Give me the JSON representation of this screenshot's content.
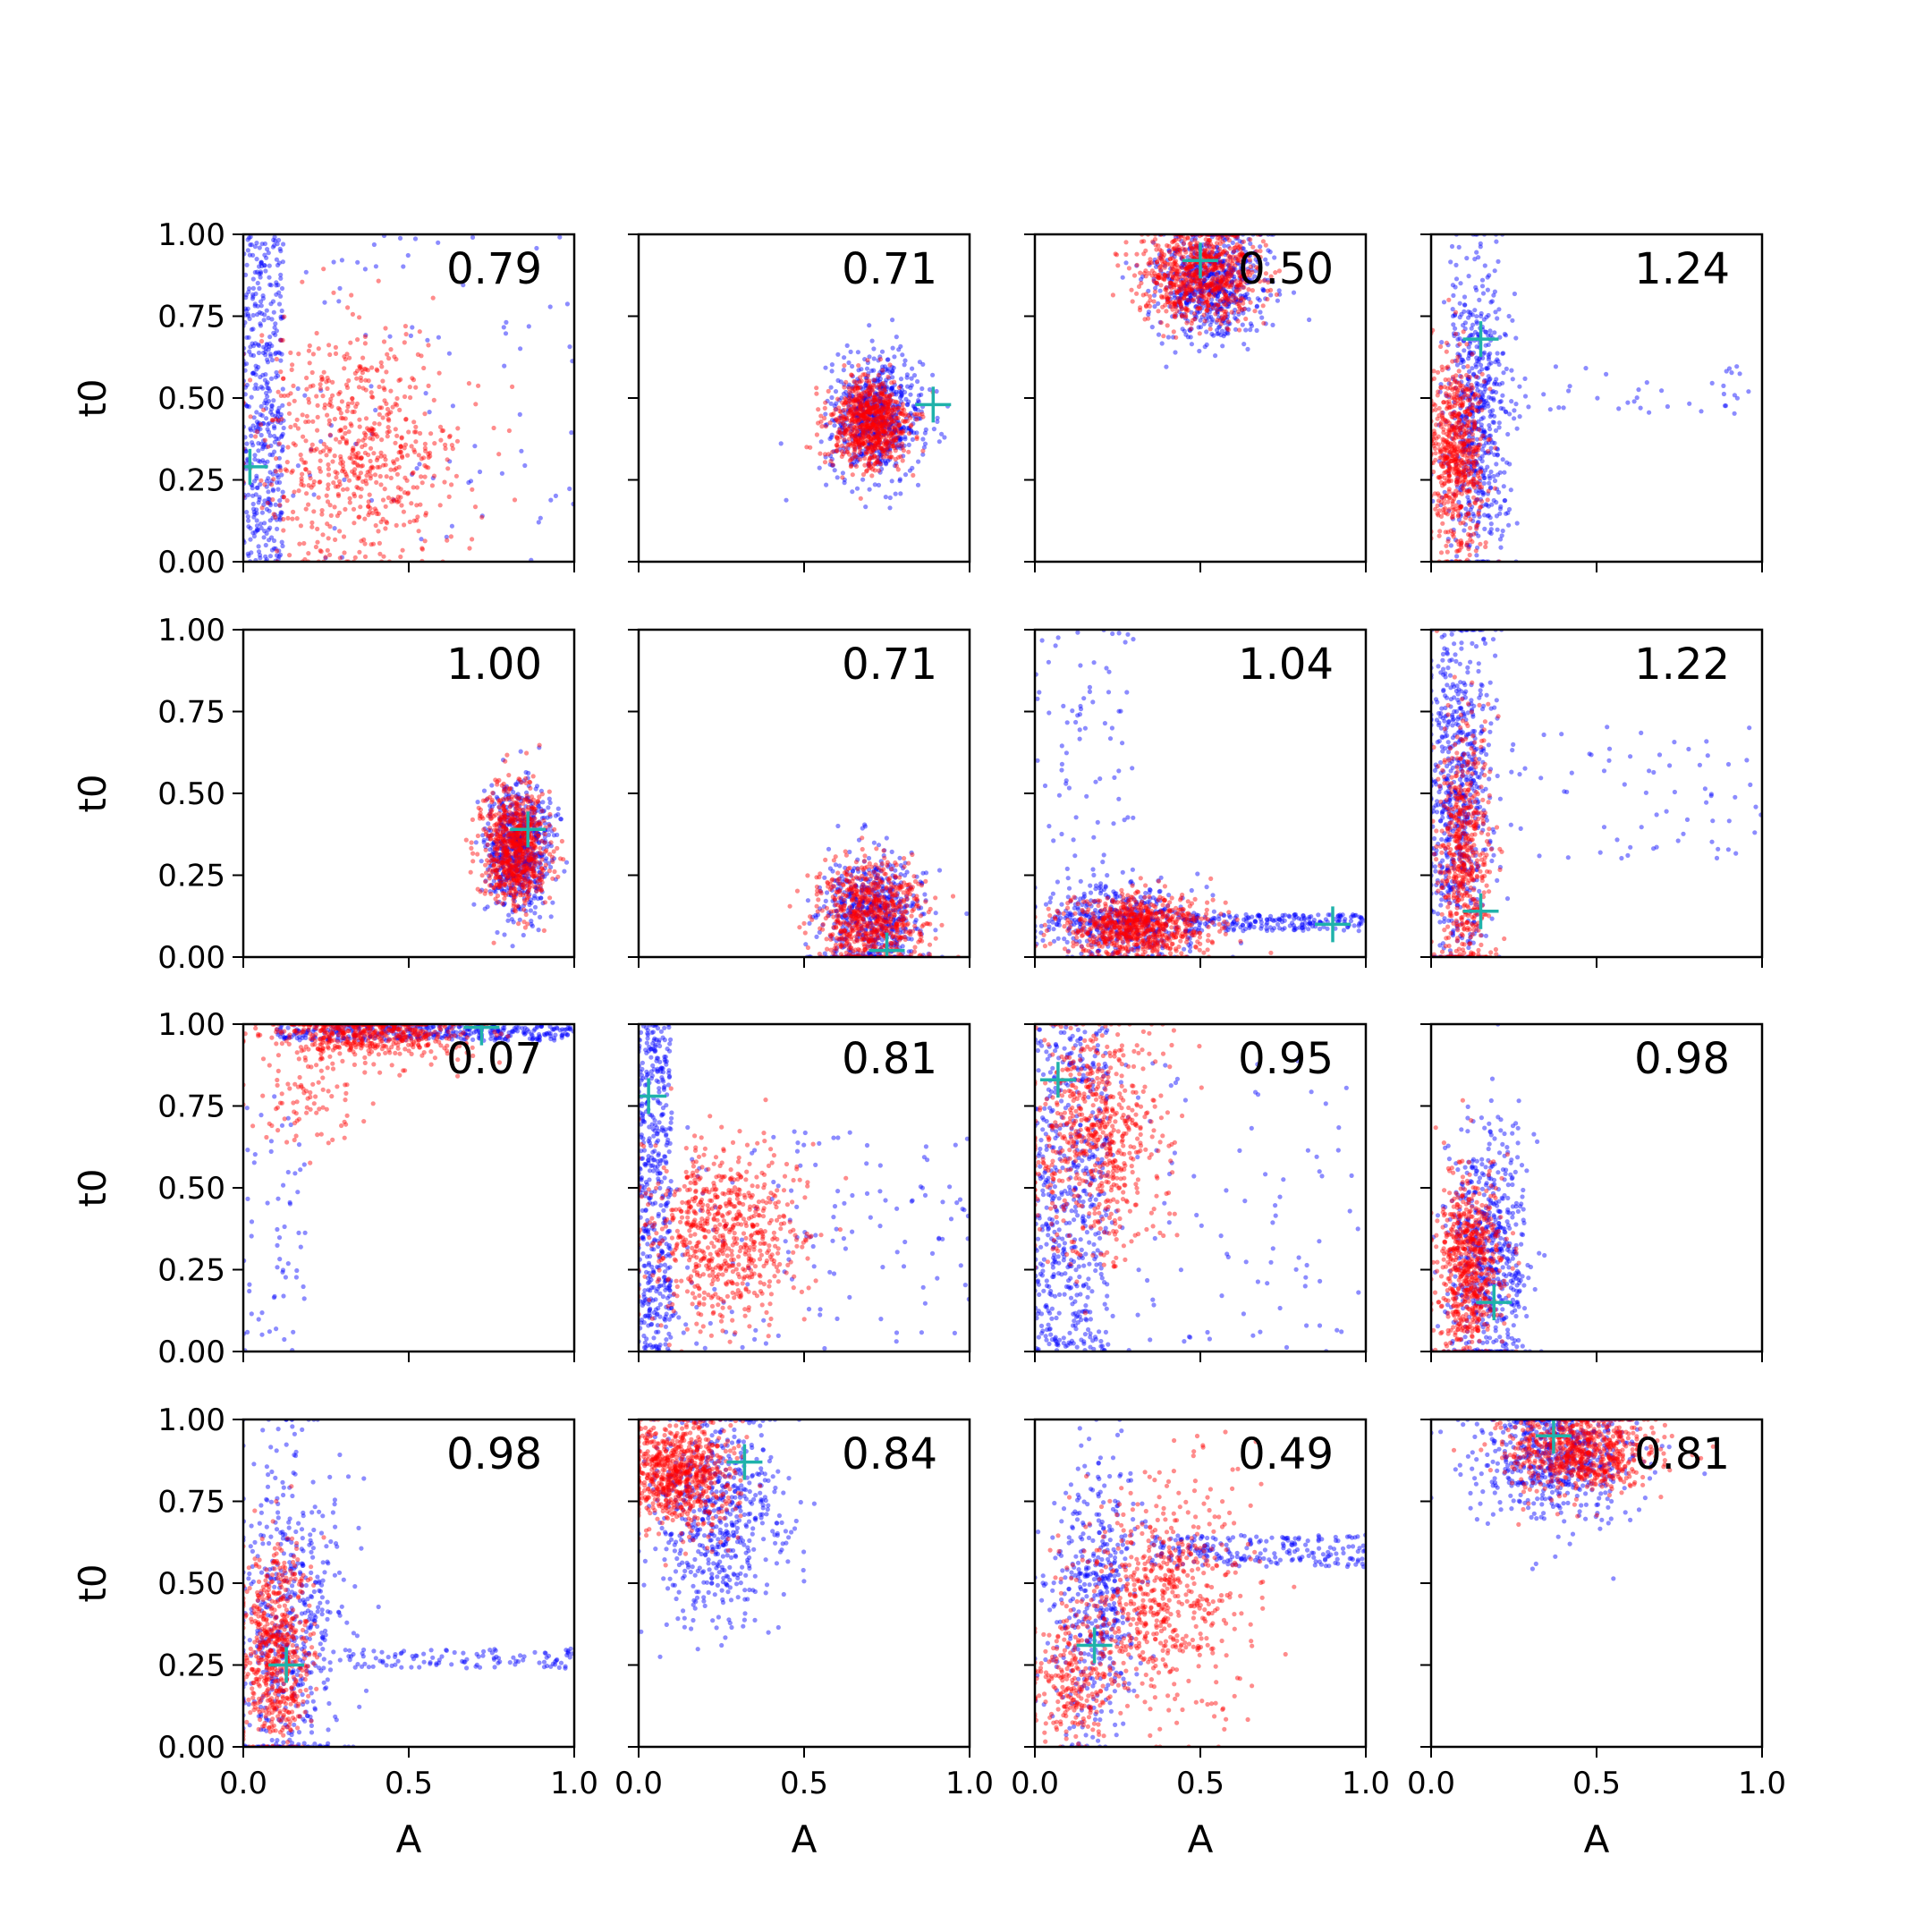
{
  "chart_data": {
    "type": "scatter",
    "layout": "4x4 grid of subplots, shared axes",
    "xlabel": "A",
    "ylabel": "t0",
    "xlim": [
      0,
      1
    ],
    "ylim": [
      0,
      1
    ],
    "x_ticks": [
      "0.0",
      "0.5",
      "1.0"
    ],
    "y_ticks": [
      "0.00",
      "0.25",
      "0.50",
      "0.75",
      "1.00"
    ],
    "grid": false,
    "legend": "none",
    "colors": {
      "series_a": "#0000ff",
      "series_b": "#ff0000",
      "marker": "#20b2aa"
    },
    "panels": [
      {
        "value": "0.79",
        "marker": [
          0.02,
          0.29
        ],
        "blue": [
          {
            "type": "uniform",
            "x": [
              0.0,
              0.12
            ],
            "y": [
              0.0,
              1.0
            ],
            "n": 420
          },
          {
            "type": "uniform",
            "x": [
              0.1,
              1.0
            ],
            "y": [
              0.0,
              1.0
            ],
            "n": 90
          }
        ],
        "red": [
          {
            "type": "gauss",
            "cx": 0.35,
            "cy": 0.35,
            "sx": 0.16,
            "sy": 0.18,
            "n": 650
          }
        ]
      },
      {
        "value": "0.71",
        "marker": [
          0.89,
          0.48
        ],
        "blue": [
          {
            "type": "gauss",
            "cx": 0.72,
            "cy": 0.44,
            "sx": 0.07,
            "sy": 0.09,
            "n": 650
          }
        ],
        "red": [
          {
            "type": "gauss",
            "cx": 0.7,
            "cy": 0.42,
            "sx": 0.06,
            "sy": 0.07,
            "n": 750
          }
        ]
      },
      {
        "value": "0.50",
        "marker": [
          0.5,
          0.92
        ],
        "blue": [
          {
            "type": "gauss",
            "cx": 0.53,
            "cy": 0.86,
            "sx": 0.08,
            "sy": 0.09,
            "n": 650
          }
        ],
        "red": [
          {
            "type": "gauss",
            "cx": 0.5,
            "cy": 0.88,
            "sx": 0.09,
            "sy": 0.07,
            "n": 750
          }
        ]
      },
      {
        "value": "1.24",
        "marker": [
          0.15,
          0.68
        ],
        "blue": [
          {
            "type": "gauss",
            "cx": 0.14,
            "cy": 0.45,
            "sx": 0.05,
            "sy": 0.22,
            "n": 600
          },
          {
            "type": "uniform",
            "x": [
              0.2,
              1.0
            ],
            "y": [
              0.45,
              0.6
            ],
            "n": 40
          }
        ],
        "red": [
          {
            "type": "gauss",
            "cx": 0.08,
            "cy": 0.33,
            "sx": 0.04,
            "sy": 0.15,
            "n": 600
          }
        ]
      },
      {
        "value": "1.00",
        "marker": [
          0.86,
          0.39
        ],
        "blue": [
          {
            "type": "gauss",
            "cx": 0.83,
            "cy": 0.33,
            "sx": 0.05,
            "sy": 0.1,
            "n": 650
          }
        ],
        "red": [
          {
            "type": "gauss",
            "cx": 0.82,
            "cy": 0.33,
            "sx": 0.05,
            "sy": 0.09,
            "n": 750
          }
        ]
      },
      {
        "value": "0.71",
        "marker": [
          0.75,
          0.02
        ],
        "blue": [
          {
            "type": "gauss",
            "cx": 0.7,
            "cy": 0.13,
            "sx": 0.08,
            "sy": 0.09,
            "n": 600
          }
        ],
        "red": [
          {
            "type": "gauss",
            "cx": 0.7,
            "cy": 0.13,
            "sx": 0.08,
            "sy": 0.08,
            "n": 700
          }
        ]
      },
      {
        "value": "1.04",
        "marker": [
          0.9,
          0.1
        ],
        "blue": [
          {
            "type": "gauss",
            "cx": 0.25,
            "cy": 0.1,
            "sx": 0.12,
            "sy": 0.06,
            "n": 450
          },
          {
            "type": "uniform",
            "x": [
              0.45,
              1.0
            ],
            "y": [
              0.08,
              0.13
            ],
            "n": 200
          },
          {
            "type": "uniform",
            "x": [
              0.0,
              0.3
            ],
            "y": [
              0.1,
              1.0
            ],
            "n": 90
          }
        ],
        "red": [
          {
            "type": "gauss",
            "cx": 0.3,
            "cy": 0.09,
            "sx": 0.11,
            "sy": 0.05,
            "n": 750
          }
        ]
      },
      {
        "value": "1.22",
        "marker": [
          0.15,
          0.14
        ],
        "blue": [
          {
            "type": "gauss",
            "cx": 0.08,
            "cy": 0.5,
            "sx": 0.05,
            "sy": 0.28,
            "n": 650
          },
          {
            "type": "uniform",
            "x": [
              0.15,
              1.0
            ],
            "y": [
              0.3,
              0.72
            ],
            "n": 70
          }
        ],
        "red": [
          {
            "type": "gauss",
            "cx": 0.1,
            "cy": 0.3,
            "sx": 0.04,
            "sy": 0.2,
            "n": 550
          }
        ]
      },
      {
        "value": "0.07",
        "marker": [
          0.72,
          0.99
        ],
        "blue": [
          {
            "type": "uniform",
            "x": [
              0.1,
              1.0
            ],
            "y": [
              0.95,
              1.0
            ],
            "n": 380
          },
          {
            "type": "uniform",
            "x": [
              0.0,
              0.2
            ],
            "y": [
              0.0,
              0.8
            ],
            "n": 60
          }
        ],
        "red": [
          {
            "type": "gauss",
            "cx": 0.38,
            "cy": 0.97,
            "sx": 0.15,
            "sy": 0.04,
            "n": 550
          },
          {
            "type": "gauss",
            "cx": 0.2,
            "cy": 0.78,
            "sx": 0.08,
            "sy": 0.08,
            "n": 90
          }
        ]
      },
      {
        "value": "0.81",
        "marker": [
          0.03,
          0.78
        ],
        "blue": [
          {
            "type": "uniform",
            "x": [
              0.0,
              0.1
            ],
            "y": [
              0.0,
              1.0
            ],
            "n": 450
          },
          {
            "type": "uniform",
            "x": [
              0.1,
              1.0
            ],
            "y": [
              0.0,
              0.7
            ],
            "n": 140
          }
        ],
        "red": [
          {
            "type": "gauss",
            "cx": 0.25,
            "cy": 0.36,
            "sx": 0.12,
            "sy": 0.13,
            "n": 700
          }
        ]
      },
      {
        "value": "0.95",
        "marker": [
          0.07,
          0.83
        ],
        "blue": [
          {
            "type": "uniform",
            "x": [
              0.0,
              0.22
            ],
            "y": [
              0.0,
              1.0
            ],
            "n": 550
          },
          {
            "type": "uniform",
            "x": [
              0.2,
              1.0
            ],
            "y": [
              0.0,
              0.9
            ],
            "n": 100
          }
        ],
        "red": [
          {
            "type": "gauss",
            "cx": 0.18,
            "cy": 0.65,
            "sx": 0.1,
            "sy": 0.17,
            "n": 650
          }
        ]
      },
      {
        "value": "0.98",
        "marker": [
          0.19,
          0.15
        ],
        "blue": [
          {
            "type": "gauss",
            "cx": 0.17,
            "cy": 0.3,
            "sx": 0.06,
            "sy": 0.2,
            "n": 600
          }
        ],
        "red": [
          {
            "type": "gauss",
            "cx": 0.11,
            "cy": 0.26,
            "sx": 0.05,
            "sy": 0.14,
            "n": 650
          }
        ]
      },
      {
        "value": "0.98",
        "marker": [
          0.13,
          0.25
        ],
        "blue": [
          {
            "type": "gauss",
            "cx": 0.14,
            "cy": 0.35,
            "sx": 0.08,
            "sy": 0.28,
            "n": 550
          },
          {
            "type": "uniform",
            "x": [
              0.3,
              1.0
            ],
            "y": [
              0.24,
              0.3
            ],
            "n": 110
          }
        ],
        "red": [
          {
            "type": "gauss",
            "cx": 0.1,
            "cy": 0.28,
            "sx": 0.05,
            "sy": 0.16,
            "n": 600
          }
        ]
      },
      {
        "value": "0.84",
        "marker": [
          0.32,
          0.87
        ],
        "blue": [
          {
            "type": "gauss",
            "cx": 0.24,
            "cy": 0.72,
            "sx": 0.1,
            "sy": 0.17,
            "n": 600
          }
        ],
        "red": [
          {
            "type": "gauss",
            "cx": 0.12,
            "cy": 0.83,
            "sx": 0.08,
            "sy": 0.08,
            "n": 750
          }
        ]
      },
      {
        "value": "0.49",
        "marker": [
          0.18,
          0.31
        ],
        "blue": [
          {
            "type": "gauss",
            "cx": 0.18,
            "cy": 0.45,
            "sx": 0.07,
            "sy": 0.22,
            "n": 450
          },
          {
            "type": "uniform",
            "x": [
              0.35,
              1.0
            ],
            "y": [
              0.55,
              0.65
            ],
            "n": 220
          }
        ],
        "red": [
          {
            "type": "gauss",
            "cx": 0.38,
            "cy": 0.45,
            "sx": 0.13,
            "sy": 0.17,
            "n": 650
          },
          {
            "type": "gauss",
            "cx": 0.12,
            "cy": 0.2,
            "sx": 0.06,
            "sy": 0.1,
            "n": 220
          }
        ]
      },
      {
        "value": "0.81",
        "marker": [
          0.37,
          0.95
        ],
        "blue": [
          {
            "type": "gauss",
            "cx": 0.38,
            "cy": 0.88,
            "sx": 0.12,
            "sy": 0.1,
            "n": 600
          }
        ],
        "red": [
          {
            "type": "gauss",
            "cx": 0.45,
            "cy": 0.9,
            "sx": 0.11,
            "sy": 0.06,
            "n": 700
          }
        ]
      }
    ]
  }
}
